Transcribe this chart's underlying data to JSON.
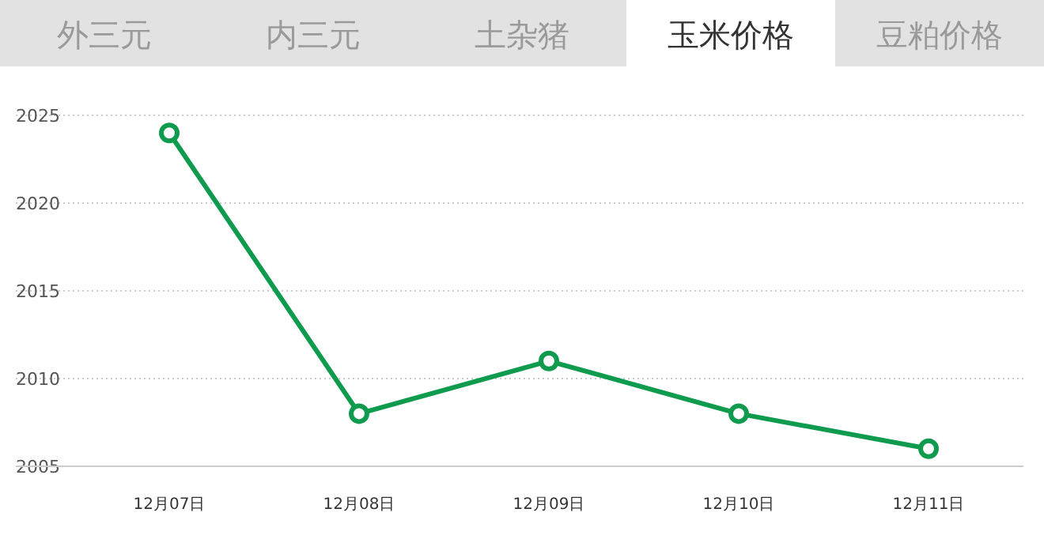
{
  "chart_data": {
    "type": "line",
    "title": "玉米价格",
    "annotations": [
      "外三元",
      "内三元",
      "土杂猪",
      "豆粕价格"
    ],
    "categories": [
      "12月07日",
      "12月08日",
      "12月09日",
      "12月10日",
      "12月11日"
    ],
    "series": [
      {
        "color": "#0f9b4e",
        "values": [
          2024,
          2008,
          2011,
          2008,
          2006
        ]
      }
    ],
    "ylim": [
      2005,
      2025
    ],
    "yticks": [
      2005,
      2010,
      2015,
      2020,
      2025
    ],
    "grid": "y",
    "marker": "circle",
    "line_style": "solid"
  }
}
